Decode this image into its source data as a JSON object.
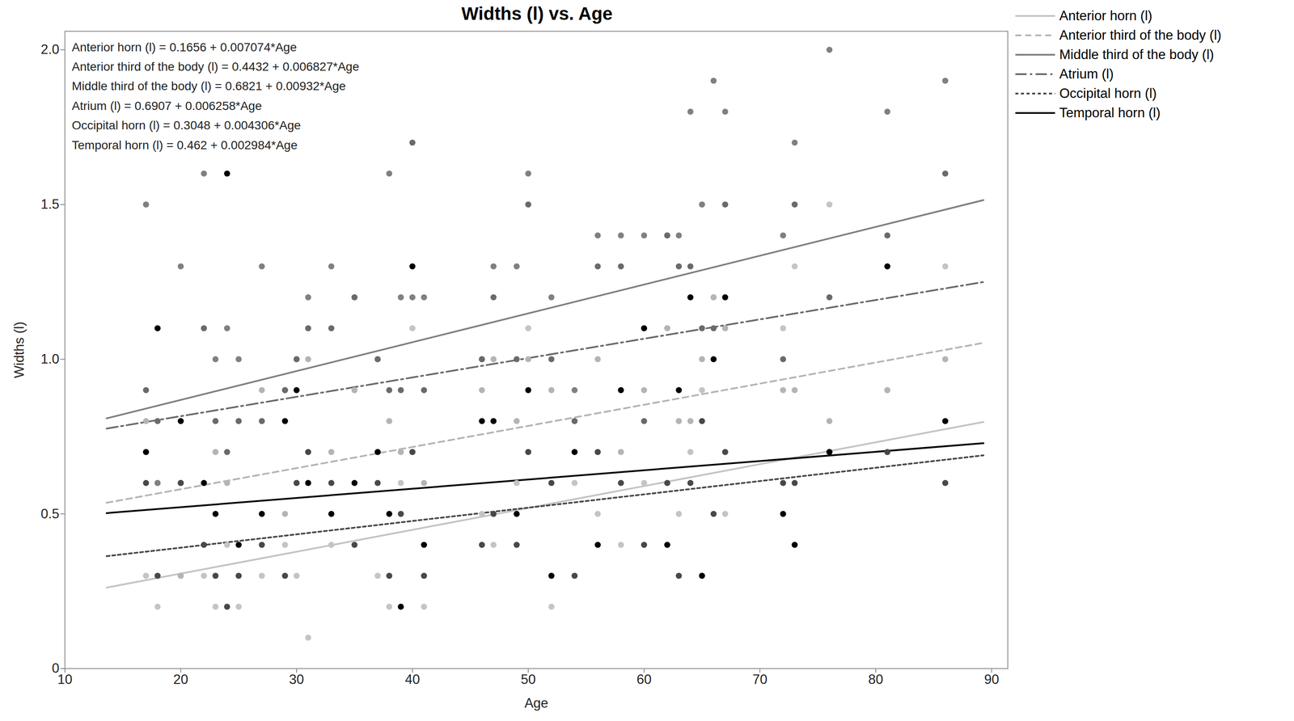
{
  "chart_data": {
    "type": "scatter",
    "title": "Widths (l) vs. Age",
    "x_label": "Age",
    "y_label": "Widths (l)",
    "xlim": [
      10,
      91.4
    ],
    "ylim": [
      0,
      2.06
    ],
    "xticks": [
      10,
      20,
      30,
      40,
      50,
      60,
      70,
      80,
      90
    ],
    "yticks": [
      0,
      0.5,
      {
        "value": 1,
        "label": "1.0"
      },
      1.5,
      {
        "value": 2,
        "label": "2.0"
      }
    ],
    "grid": false,
    "legend": "right",
    "fit_x": [
      13.6,
      89.3
    ],
    "annotations": [
      "Anterior horn (l) = 0.1656 + 0.007074*Age",
      "Anterior third of the body (l) = 0.4432 + 0.006827*Age",
      "Middle third of the body (l) = 0.6821 + 0.00932*Age",
      "Atrium (l) = 0.6907 + 0.006258*Age",
      "Occipital horn (l) = 0.3048 + 0.004306*Age",
      "Temporal horn (l) = 0.462 + 0.002984*Age"
    ],
    "x": [
      17,
      18,
      20,
      22,
      23,
      24,
      25,
      27,
      29,
      30,
      31,
      33,
      35,
      37,
      38,
      39,
      40,
      41,
      46,
      47,
      49,
      50,
      52,
      54,
      56,
      58,
      60,
      62,
      63,
      64,
      65,
      66,
      67,
      72,
      73,
      76,
      81,
      86
    ],
    "series": [
      {
        "name": "Anterior horn (l)",
        "color": "#c4c4c4",
        "line_style": "solid",
        "marker": "circle",
        "intercept": 0.1656,
        "slope": 0.007074,
        "values": [
          0.3,
          0.2,
          0.3,
          0.3,
          0.2,
          0.4,
          0.2,
          0.3,
          0.4,
          0.3,
          0.1,
          0.4,
          0.9,
          0.3,
          0.2,
          0.6,
          1.1,
          0.2,
          0.5,
          0.4,
          0.6,
          1.1,
          0.2,
          0.6,
          0.5,
          0.4,
          0.6,
          1.1,
          0.5,
          0.7,
          0.9,
          1.2,
          0.5,
          1.1,
          1.3,
          1.5,
          0.9,
          1.3
        ]
      },
      {
        "name": "Anterior third of the body (l)",
        "color": "#b4b4b4",
        "line_style": "dashed",
        "marker": "circle",
        "intercept": 0.4432,
        "slope": 0.006827,
        "values": [
          0.8,
          0.6,
          0.3,
          0.6,
          0.7,
          0.6,
          0.8,
          0.9,
          0.5,
          0.6,
          1.0,
          0.7,
          0.9,
          0.7,
          0.8,
          0.7,
          0.7,
          0.6,
          0.9,
          1.0,
          0.8,
          1.0,
          0.9,
          0.8,
          1.0,
          0.7,
          0.9,
          1.1,
          0.8,
          0.8,
          1.0,
          1.2,
          1.1,
          0.9,
          0.9,
          0.8,
          0.9,
          1.0
        ]
      },
      {
        "name": "Middle third of the body (l)",
        "color": "#808080",
        "line_style": "solid",
        "marker": "circle",
        "intercept": 0.6821,
        "slope": 0.00932,
        "values": [
          1.5,
          0.6,
          1.3,
          1.6,
          1.0,
          1.1,
          1.0,
          1.3,
          0.9,
          1.0,
          1.2,
          1.3,
          1.2,
          1.0,
          1.6,
          1.2,
          1.2,
          1.2,
          1.0,
          1.3,
          1.3,
          1.6,
          1.2,
          0.9,
          1.4,
          1.4,
          1.4,
          1.4,
          1.4,
          1.8,
          1.5,
          1.9,
          1.8,
          1.4,
          1.7,
          2.0,
          1.8,
          1.9
        ]
      },
      {
        "name": "Atrium (l)",
        "color": "#6a6a6a",
        "line_style": "dashdot",
        "marker": "circle",
        "intercept": 0.6907,
        "slope": 0.006258,
        "values": [
          0.9,
          0.8,
          0.6,
          1.1,
          0.8,
          0.7,
          0.8,
          0.8,
          0.9,
          1.0,
          1.1,
          1.1,
          1.2,
          1.0,
          0.9,
          0.9,
          1.7,
          0.9,
          1.0,
          1.2,
          1.0,
          1.5,
          1.0,
          0.8,
          1.3,
          1.3,
          0.8,
          1.4,
          1.3,
          1.3,
          1.1,
          1.1,
          1.5,
          1.0,
          1.5,
          1.2,
          1.4,
          1.6
        ]
      },
      {
        "name": "Occipital horn (l)",
        "color": "#484848",
        "line_style": "dotted",
        "marker": "circle",
        "intercept": 0.3048,
        "slope": 0.004306,
        "values": [
          0.6,
          0.3,
          0.6,
          0.4,
          0.3,
          0.2,
          0.3,
          0.4,
          0.3,
          0.6,
          0.7,
          0.6,
          0.4,
          0.6,
          0.3,
          0.5,
          0.7,
          0.3,
          0.4,
          0.5,
          0.4,
          0.7,
          0.6,
          0.3,
          0.7,
          0.6,
          0.4,
          0.6,
          0.3,
          0.6,
          0.8,
          0.5,
          0.7,
          0.6,
          0.6,
          0.7,
          0.7,
          0.6
        ]
      },
      {
        "name": "Temporal horn (l)",
        "color": "#000000",
        "line_style": "solid",
        "marker": "circle",
        "intercept": 0.462,
        "slope": 0.002984,
        "values": [
          0.7,
          1.1,
          0.8,
          0.6,
          0.5,
          1.6,
          0.4,
          0.5,
          0.8,
          0.9,
          0.6,
          0.5,
          0.6,
          0.7,
          0.5,
          0.2,
          1.3,
          0.4,
          0.8,
          0.8,
          0.5,
          0.9,
          0.3,
          0.7,
          0.4,
          0.9,
          1.1,
          0.4,
          0.9,
          1.2,
          0.3,
          1.0,
          1.2,
          0.5,
          0.4,
          0.7,
          1.3,
          0.8
        ]
      }
    ]
  }
}
